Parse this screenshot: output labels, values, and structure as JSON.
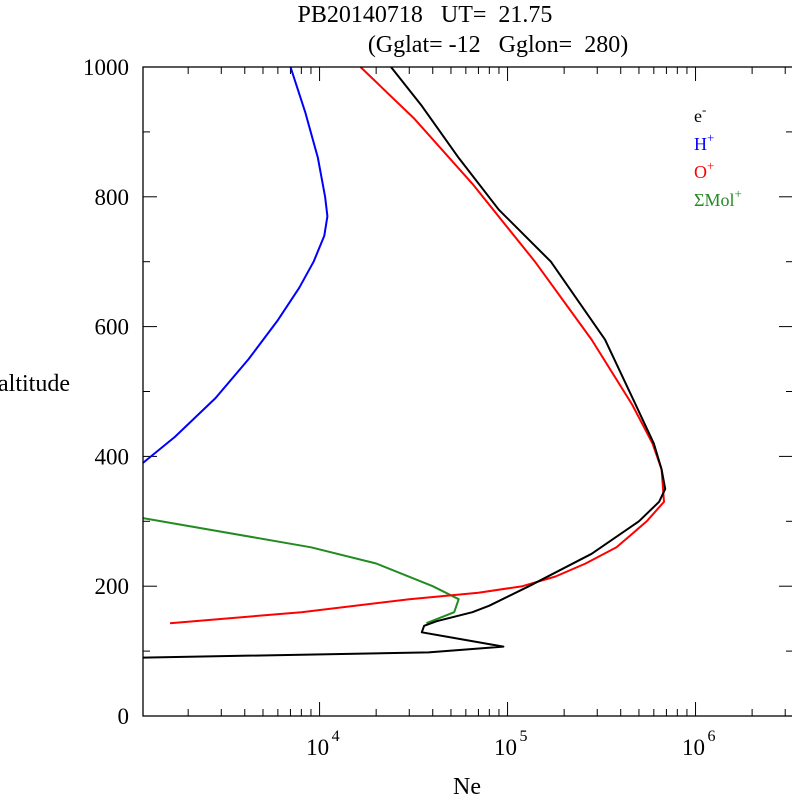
{
  "chart_data": {
    "type": "line",
    "title_line1": "PB20140718   UT=  21.75",
    "title_line2": "(Gglat= -12   Gglon=  280)",
    "xlabel": "Ne",
    "ylabel": "altitude",
    "xscale": "log",
    "xlim": [
      1150,
      3300000
    ],
    "ylim": [
      0,
      1000
    ],
    "xtick_labels": [
      {
        "value": 10000,
        "base": "10",
        "exp": "4"
      },
      {
        "value": 100000,
        "base": "10",
        "exp": "5"
      },
      {
        "value": 1000000,
        "base": "10",
        "exp": "6"
      }
    ],
    "yticks": [
      0,
      200,
      400,
      600,
      800,
      1000
    ],
    "legend_position": "top-right",
    "series": [
      {
        "name": "e",
        "label_base": "e",
        "label_sup": "-",
        "color": "#000000",
        "x": [
          1150,
          38000,
          95000,
          35000,
          36000,
          42000,
          65000,
          80000,
          130000,
          280000,
          500000,
          640000,
          690000,
          660000,
          600000,
          480000,
          330000,
          170000,
          90000,
          55000,
          35000,
          24000
        ],
        "y": [
          90,
          98,
          107,
          129,
          139,
          146,
          160,
          170,
          200,
          250,
          300,
          330,
          350,
          380,
          420,
          480,
          580,
          700,
          780,
          860,
          940,
          1000
        ]
      },
      {
        "name": "H+",
        "label_base": "H",
        "label_sup": "+",
        "color": "#0000ff",
        "x": [
          1150,
          1700,
          2800,
          4200,
          6000,
          7800,
          9300,
          10600,
          11000,
          10700,
          9800,
          8400,
          7000
        ],
        "y": [
          390,
          430,
          490,
          550,
          610,
          660,
          700,
          740,
          770,
          800,
          860,
          930,
          1000
        ]
      },
      {
        "name": "O+",
        "label_base": "O",
        "label_sup": "+",
        "color": "#ff0000",
        "x": [
          1600,
          8000,
          30000,
          70000,
          120000,
          180000,
          260000,
          380000,
          550000,
          680000,
          660000,
          590000,
          460000,
          280000,
          140000,
          65000,
          32000,
          16500
        ],
        "y": [
          143,
          160,
          180,
          190,
          200,
          215,
          235,
          260,
          300,
          330,
          380,
          420,
          480,
          580,
          700,
          820,
          920,
          1000
        ]
      },
      {
        "name": "Mol+",
        "label_base": "ΣMol",
        "label_sup": "+",
        "color": "#228b22",
        "x": [
          37000,
          52000,
          55000,
          40000,
          20000,
          9000,
          1150
        ],
        "y": [
          143,
          160,
          180,
          200,
          235,
          260,
          305
        ]
      }
    ]
  }
}
